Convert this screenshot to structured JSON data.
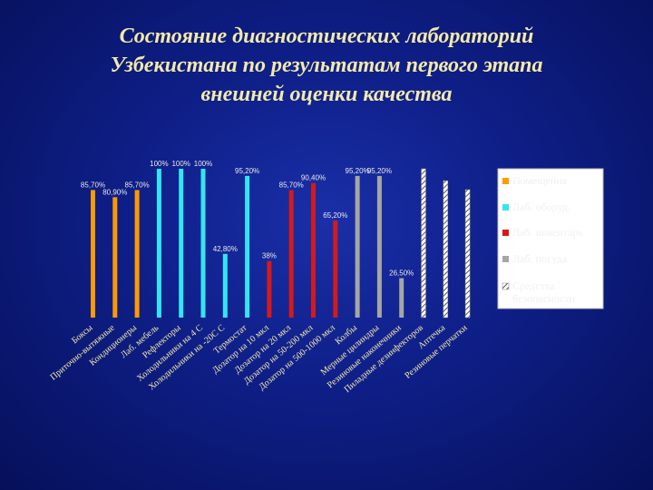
{
  "title": {
    "line1": "Состояние  диагностических лабораторий",
    "line2": "Узбекистана по результатам первого этапа",
    "line3": "внешней оценки качества"
  },
  "chart_data": {
    "type": "bar",
    "title": "",
    "xlabel": "",
    "ylabel": "",
    "ylim": [
      0,
      100
    ],
    "grid": false,
    "legend_position": "right",
    "colors": {
      "Помещения": "#ff9900",
      "Лаб. оборуд.": "#33e6f0",
      "Лаб. инвентарь": "#d41a1a",
      "Лаб. посуда": "#a6a6a6",
      "Средства безопасности": "#e8e8e8"
    },
    "series": [
      {
        "name": "Помещения",
        "bars": [
          {
            "category": "Боксы",
            "value": 85.7,
            "label": "85,70%"
          },
          {
            "category": "Приточно-вытяжные",
            "value": 80.9,
            "label": "80,90%"
          },
          {
            "category": "Кондиционеры",
            "value": 85.7,
            "label": "85,70%"
          }
        ]
      },
      {
        "name": "Лаб. оборуд.",
        "bars": [
          {
            "category": "Лаб. мебель",
            "value": 100,
            "label": "100%"
          },
          {
            "category": "Рефлекторы",
            "value": 100,
            "label": "100%"
          },
          {
            "category": "Холодильники на 4 С",
            "value": 100,
            "label": "100%"
          },
          {
            "category": "Холодильники на -20С С",
            "value": 42.8,
            "label": "42,80%"
          },
          {
            "category": "Термостат",
            "value": 95.2,
            "label": "95,20%"
          }
        ]
      },
      {
        "name": "Лаб. инвентарь",
        "bars": [
          {
            "category": "Дозатор на 10 мкл",
            "value": 38,
            "label": "38%"
          },
          {
            "category": "Дозатор на 20 мкл",
            "value": 85.7,
            "label": "85,70%"
          },
          {
            "category": "Дозатор на 50-200 мкл",
            "value": 90.4,
            "label": "90,40%"
          },
          {
            "category": "Дозатор на 500-1000 мкл",
            "value": 65.2,
            "label": "65,20%"
          }
        ]
      },
      {
        "name": "Лаб. посуда",
        "bars": [
          {
            "category": "Колбы",
            "value": 95.2,
            "label": "95,20%"
          },
          {
            "category": "Мерные цилиндры",
            "value": 95.2,
            "label": "95,20%"
          },
          {
            "category": "Резиновые наконечники",
            "value": 26.5,
            "label": "26,50%"
          }
        ]
      },
      {
        "name": "Средства безопасности",
        "bars": [
          {
            "category": "Пиладные дезинфекторов",
            "value": 100,
            "label": ""
          },
          {
            "category": "Аптечка",
            "value": 92,
            "label": ""
          },
          {
            "category": "Резиновые перчатки",
            "value": 86,
            "label": ""
          }
        ]
      }
    ],
    "legend": [
      "Помещения",
      "Лаб. оборуд.",
      "Лаб. инвентарь",
      "Лаб. посуда",
      "Средства безопасности"
    ]
  }
}
